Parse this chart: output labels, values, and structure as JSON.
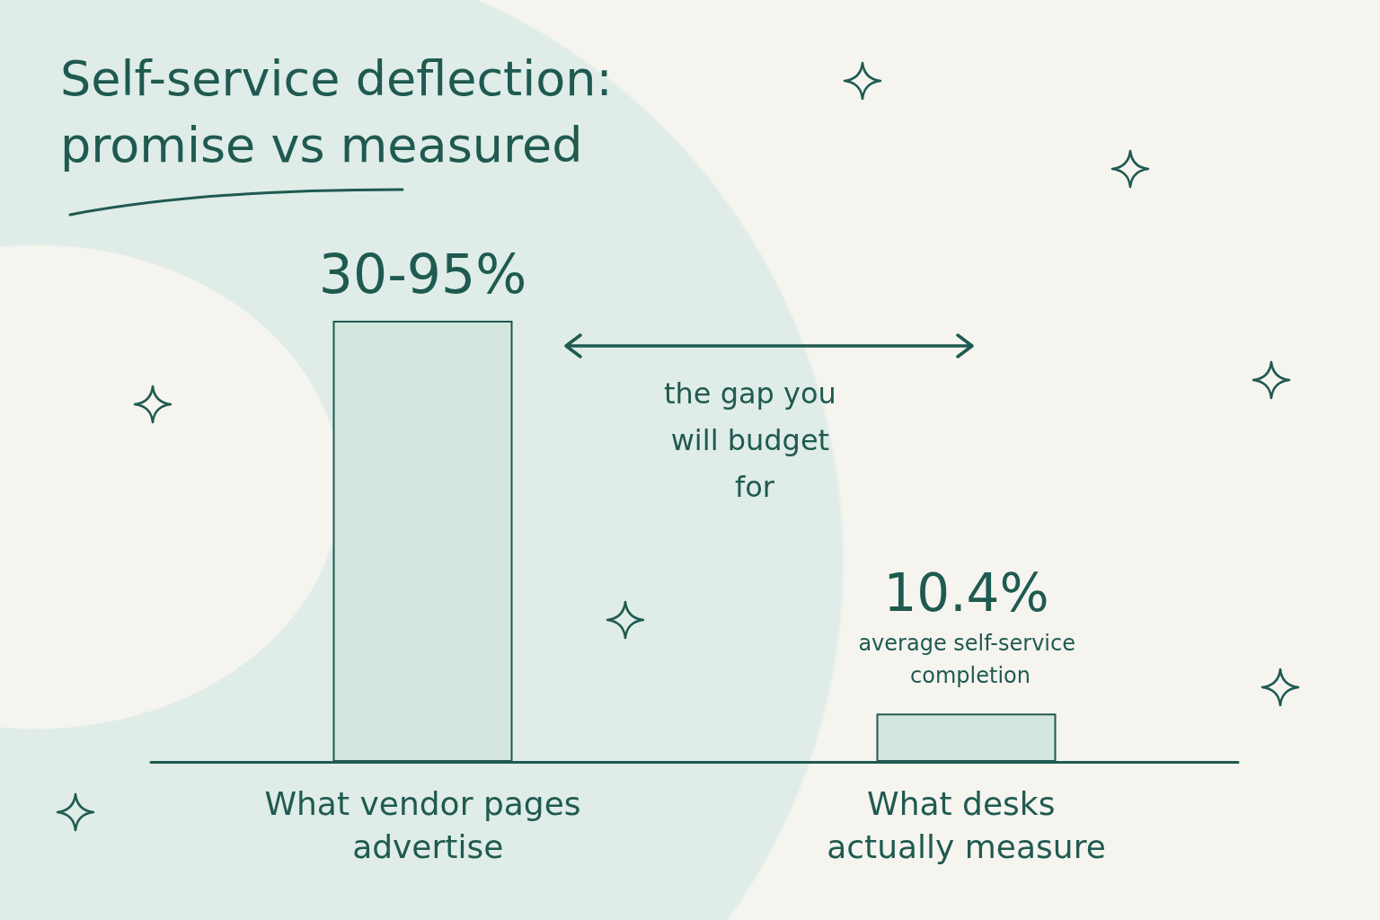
{
  "chart_data": {
    "type": "bar",
    "title": "Self-service deflection:\npromise vs measured",
    "categories": [
      "What vendor pages advertise",
      "What desks actually measure"
    ],
    "values": [
      95,
      10.4
    ],
    "value_labels": [
      null,
      "10.4%"
    ],
    "color": "#d3e7df",
    "annotations": [
      "the gap you will budget for",
      "average self-service completion",
      "30-95%"
    ],
    "tick_labels": "x",
    "grid": false
  }
}
